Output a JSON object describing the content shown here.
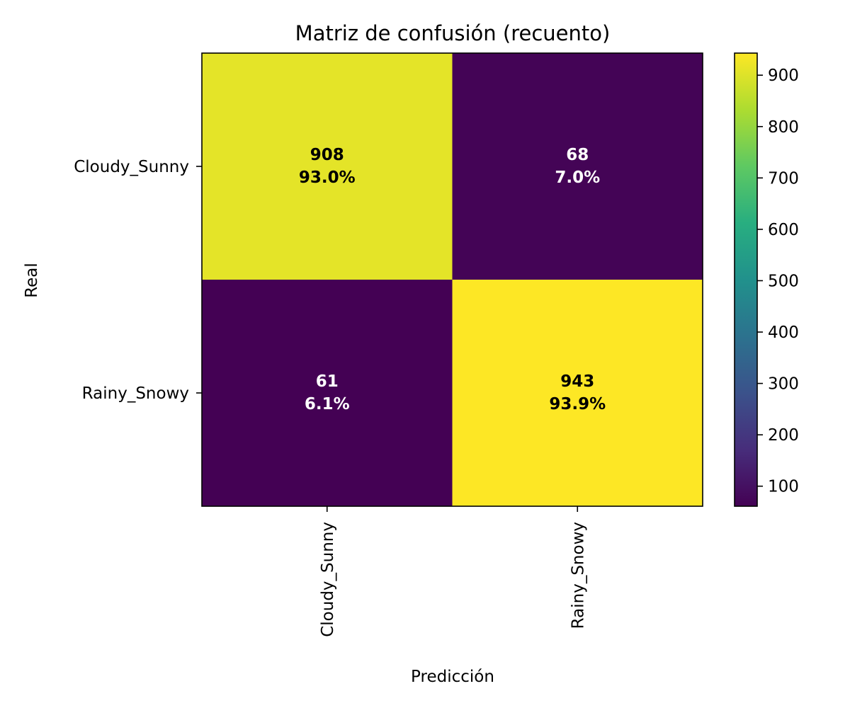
{
  "chart_data": {
    "type": "heatmap",
    "title": "Matriz de confusión (recuento)",
    "xlabel": "Predicción",
    "ylabel": "Real",
    "x_categories": [
      "Cloudy_Sunny",
      "Rainy_Snowy"
    ],
    "y_categories": [
      "Cloudy_Sunny",
      "Rainy_Snowy"
    ],
    "values": [
      [
        908,
        68
      ],
      [
        61,
        943
      ]
    ],
    "cell_labels": [
      [
        "908",
        "93.0%"
      ],
      [
        "68",
        "7.0%"
      ],
      [
        "61",
        "6.1%"
      ],
      [
        "943",
        "93.9%"
      ]
    ],
    "colormap": "viridis",
    "color_range": [
      61,
      943
    ],
    "colorbar_ticks": [
      100,
      200,
      300,
      400,
      500,
      600,
      700,
      800,
      900
    ],
    "colorbar_tick_labels": [
      "100",
      "200",
      "300",
      "400",
      "500",
      "600",
      "700",
      "800",
      "900"
    ],
    "text_colors": {
      "dark": "#000000",
      "light": "#ffffff"
    },
    "grid": false
  }
}
